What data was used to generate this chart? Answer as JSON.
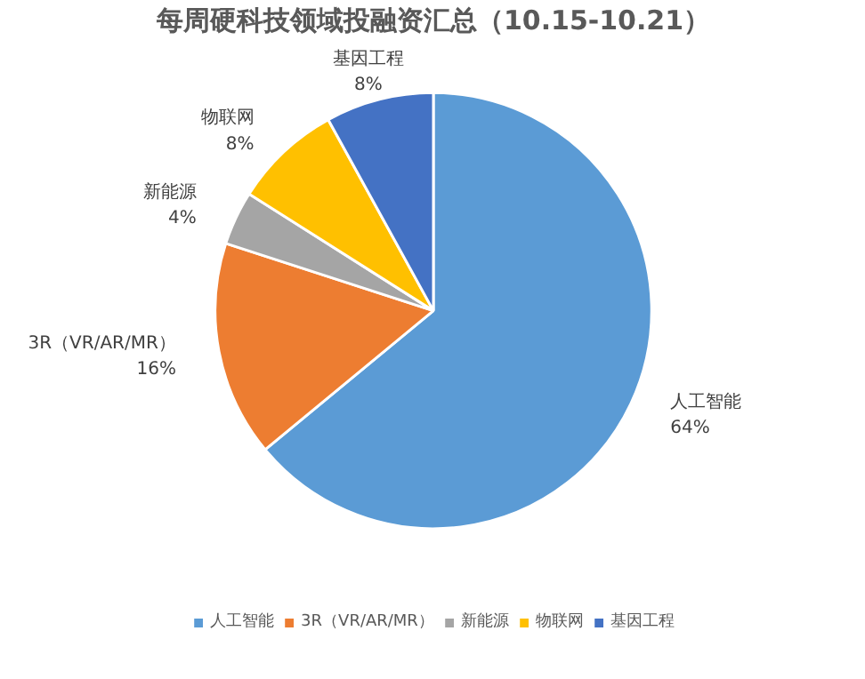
{
  "chart_data": {
    "type": "pie",
    "title": "每周硬科技领域投融资汇总（10.15-10.21）",
    "categories": [
      "人工智能",
      "3R（VR/AR/MR）",
      "新能源",
      "物联网",
      "基因工程"
    ],
    "values": [
      64,
      16,
      4,
      8,
      8
    ],
    "colors": [
      "#5b9bd5",
      "#ed7d31",
      "#a5a5a5",
      "#ffc000",
      "#4472c4"
    ],
    "value_labels": [
      "64%",
      "16%",
      "4%",
      "8%",
      "8%"
    ],
    "legend": "bottom"
  }
}
